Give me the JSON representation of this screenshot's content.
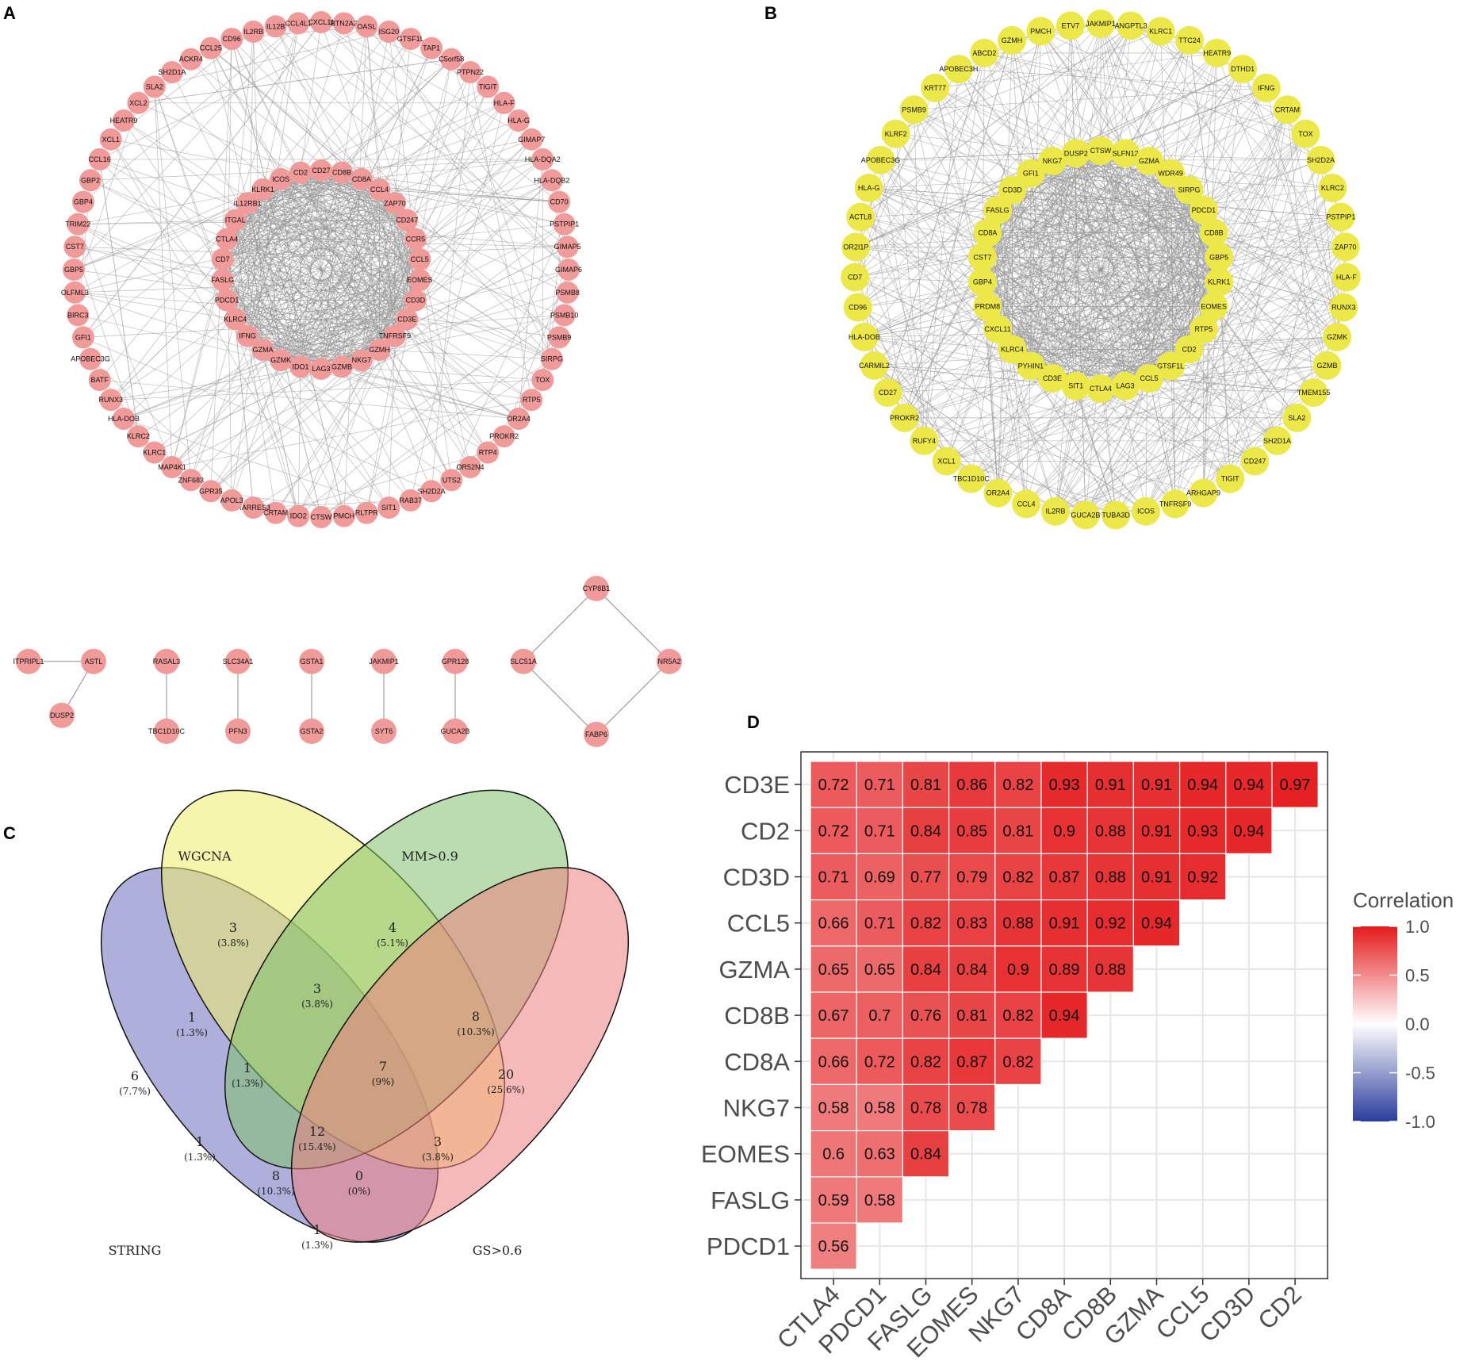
{
  "panels": {
    "a": "A",
    "b": "B",
    "c": "C",
    "d": "D"
  },
  "network_a": {
    "node_color": "#f09a9a",
    "outer_nodes": [
      "CXCL11",
      "BTN2A2",
      "OASL",
      "ISG20",
      "GTSF1L",
      "TAP1",
      "C5orf58",
      "PTPN22",
      "TIGIT",
      "HLA-F",
      "HLA-G",
      "GIMAP7",
      "HLA-DQA2",
      "HLA-DQB2",
      "CD70",
      "PSTPIP1",
      "GIMAP5",
      "GIMAP6",
      "PSMB8",
      "PSMB10",
      "PSMB9",
      "SIRPG",
      "TOX",
      "RTP5",
      "OR2A4",
      "PROKR2",
      "RTP4",
      "OR52N4",
      "UTS2",
      "SH2D2A",
      "RAB37",
      "SIT1",
      "RLTPR",
      "PMCH",
      "CTSW",
      "IDO2",
      "CRTAM",
      "RARRES3",
      "APOL3",
      "GPR35",
      "ZNF683",
      "MAP4K1",
      "KLRC1",
      "KLRC2",
      "HLA-DOB",
      "RUNX3",
      "BATF",
      "APOBEC3G",
      "GFI1",
      "BIRC3",
      "OLFML3",
      "GBP5",
      "CST7",
      "TRIM22",
      "GBP4",
      "GBP2",
      "CCL16",
      "XCL1",
      "HEATR9",
      "XCL2",
      "SLA2",
      "SH2D1A",
      "ACKR4",
      "CCL25",
      "CD96",
      "IL2RB",
      "IL12B",
      "CCL4L1"
    ],
    "inner_nodes": [
      "CD27",
      "CD8B",
      "CD8A",
      "CCL4",
      "ZAP70",
      "CD247",
      "CCR5",
      "CCL5",
      "EOMES",
      "CD3D",
      "CD3E",
      "TNFRSF9",
      "GZMH",
      "NKG7",
      "GZMB",
      "LAG3",
      "IDO1",
      "GZMK",
      "GZMA",
      "IFNG",
      "KLRC4",
      "PDCD1",
      "FASLG",
      "CD7",
      "CTLA4",
      "ITGAL",
      "IL12RB1",
      "KLRK1",
      "ICOS",
      "CD2"
    ],
    "small_components": [
      {
        "nodes": [
          "ITPRIPL1",
          "ASTL",
          "DUSP2"
        ]
      },
      {
        "nodes": [
          "RASAL3",
          "TBC1D10C"
        ]
      },
      {
        "nodes": [
          "SLC34A1",
          "PFN3"
        ]
      },
      {
        "nodes": [
          "GSTA1",
          "GSTA2"
        ]
      },
      {
        "nodes": [
          "JAKMIP1",
          "SYT6"
        ]
      },
      {
        "nodes": [
          "GPR128",
          "GUCA2B"
        ]
      },
      {
        "nodes": [
          "CYP8B1",
          "SLC51A",
          "NR5A2",
          "FABP6"
        ]
      }
    ]
  },
  "network_b": {
    "node_color": "#ede84a",
    "outer_nodes": [
      "JAKMIP1",
      "ANGPTL3",
      "KLRC1",
      "TTC24",
      "HEATR9",
      "DTHD1",
      "IFNG",
      "CRTAM",
      "TOX",
      "SH2D2A",
      "KLRC2",
      "PSTPIP1",
      "ZAP70",
      "HLA-F",
      "RUNX3",
      "GZMK",
      "GZMB",
      "TMEM155",
      "SLA2",
      "SH2D1A",
      "CD247",
      "TIGIT",
      "ARHGAP9",
      "TNFRSF9",
      "ICOS",
      "TUBA3D",
      "GUCA2B",
      "IL2RB",
      "CCL4",
      "OR2A4",
      "TBC1D10C",
      "XCL1",
      "RUFY4",
      "PROKR2",
      "CD27",
      "CARMIL2",
      "HLA-DOB",
      "CD96",
      "CD7",
      "OR2I1P",
      "ACTL8",
      "HLA-G",
      "APOBEC3G",
      "KLRF2",
      "PSMB9",
      "KRT77",
      "APOBEC3H",
      "ABCD2",
      "GZMH",
      "PMCH",
      "ETV7"
    ],
    "inner_nodes": [
      "CTSW",
      "SLFN12",
      "GZMA",
      "WDR49",
      "SIRPG",
      "PDCD1",
      "CD8B",
      "GBP5",
      "KLRK1",
      "EOMES",
      "RTP5",
      "CD2",
      "GTSF1L",
      "CCL5",
      "LAG3",
      "CTLA4",
      "SIT1",
      "CD3E",
      "PYHIN1",
      "KLRC4",
      "CXCL11",
      "PRDM8",
      "GBP4",
      "CST7",
      "CD8A",
      "FASLG",
      "CD3D",
      "GFI1",
      "NKG7",
      "DUSP2"
    ]
  },
  "venn": {
    "sets": [
      {
        "name": "WGCNA",
        "color": "#ecec6a",
        "label_color": "#8a8a22"
      },
      {
        "name": "MM>0.9",
        "color": "#7fc16c",
        "label_color": "#2e7d32"
      },
      {
        "name": "STRING",
        "color": "#6e6ec0",
        "label_color": "#3b4bb0"
      },
      {
        "name": "GS>0.6",
        "color": "#ee7f82",
        "label_color": "#e03030"
      }
    ],
    "regions": [
      {
        "count": "3",
        "pct": "(3.8%)"
      },
      {
        "count": "4",
        "pct": "(5.1%)"
      },
      {
        "count": "1",
        "pct": "(1.3%)"
      },
      {
        "count": "3",
        "pct": "(3.8%)"
      },
      {
        "count": "8",
        "pct": "(10.3%)"
      },
      {
        "count": "6",
        "pct": "(7.7%)"
      },
      {
        "count": "1",
        "pct": "(1.3%)"
      },
      {
        "count": "7",
        "pct": "(9%)"
      },
      {
        "count": "20",
        "pct": "(25.6%)"
      },
      {
        "count": "1",
        "pct": "(1.3%)"
      },
      {
        "count": "12",
        "pct": "(15.4%)"
      },
      {
        "count": "3",
        "pct": "(3.8%)"
      },
      {
        "count": "8",
        "pct": "(10.3%)"
      },
      {
        "count": "0",
        "pct": "(0%)"
      },
      {
        "count": "1",
        "pct": "(1.3%)"
      }
    ]
  },
  "chart_data": {
    "type": "heatmap",
    "title": "",
    "value_label": "Correlation",
    "rows": [
      "CD3E",
      "CD2",
      "CD3D",
      "CCL5",
      "GZMA",
      "CD8B",
      "CD8A",
      "NKG7",
      "EOMES",
      "FASLG",
      "PDCD1"
    ],
    "columns": [
      "CTLA4",
      "PDCD1",
      "FASLG",
      "EOMES",
      "NKG7",
      "CD8A",
      "CD8B",
      "GZMA",
      "CCL5",
      "CD3D",
      "CD2"
    ],
    "values": [
      [
        0.72,
        0.71,
        0.81,
        0.86,
        0.82,
        0.93,
        0.91,
        0.91,
        0.94,
        0.94,
        0.97
      ],
      [
        0.72,
        0.71,
        0.84,
        0.85,
        0.81,
        0.9,
        0.88,
        0.91,
        0.93,
        0.94
      ],
      [
        0.71,
        0.69,
        0.77,
        0.79,
        0.82,
        0.87,
        0.88,
        0.91,
        0.92
      ],
      [
        0.66,
        0.71,
        0.82,
        0.83,
        0.88,
        0.91,
        0.92,
        0.94
      ],
      [
        0.65,
        0.65,
        0.84,
        0.84,
        0.9,
        0.89,
        0.88
      ],
      [
        0.67,
        0.7,
        0.76,
        0.81,
        0.82,
        0.94
      ],
      [
        0.66,
        0.72,
        0.82,
        0.87,
        0.82
      ],
      [
        0.58,
        0.58,
        0.78,
        0.78
      ],
      [
        0.6,
        0.63,
        0.84
      ],
      [
        0.59,
        0.58
      ],
      [
        0.56
      ]
    ],
    "value_labels": [
      [
        "0.72",
        "0.71",
        "0.81",
        "0.86",
        "0.82",
        "0.93",
        "0.91",
        "0.91",
        "0.94",
        "0.94",
        "0.97"
      ],
      [
        "0.72",
        "0.71",
        "0.84",
        "0.85",
        "0.81",
        "0.9",
        "0.88",
        "0.91",
        "0.93",
        "0.94"
      ],
      [
        "0.71",
        "0.69",
        "0.77",
        "0.79",
        "0.82",
        "0.87",
        "0.88",
        "0.91",
        "0.92"
      ],
      [
        "0.66",
        "0.71",
        "0.82",
        "0.83",
        "0.88",
        "0.91",
        "0.92",
        "0.94"
      ],
      [
        "0.65",
        "0.65",
        "0.84",
        "0.84",
        "0.9",
        "0.89",
        "0.88"
      ],
      [
        "0.67",
        "0.7",
        "0.76",
        "0.81",
        "0.82",
        "0.94"
      ],
      [
        "0.66",
        "0.72",
        "0.82",
        "0.87",
        "0.82"
      ],
      [
        "0.58",
        "0.58",
        "0.78",
        "0.78"
      ],
      [
        "0.6",
        "0.63",
        "0.84"
      ],
      [
        "0.59",
        "0.58"
      ],
      [
        "0.56"
      ]
    ],
    "color_range": [
      -1,
      1
    ],
    "colors": {
      "low": "#2b3d9c",
      "mid": "#ffffff",
      "high": "#e41a1c"
    },
    "legend": {
      "title": "Correlation",
      "ticks": [
        1,
        0.5,
        0,
        -0.5,
        -1
      ],
      "tick_labels": [
        "1.0",
        "0.5",
        "0.0",
        "-0.5",
        "-1.0"
      ],
      "placement": "right"
    }
  }
}
